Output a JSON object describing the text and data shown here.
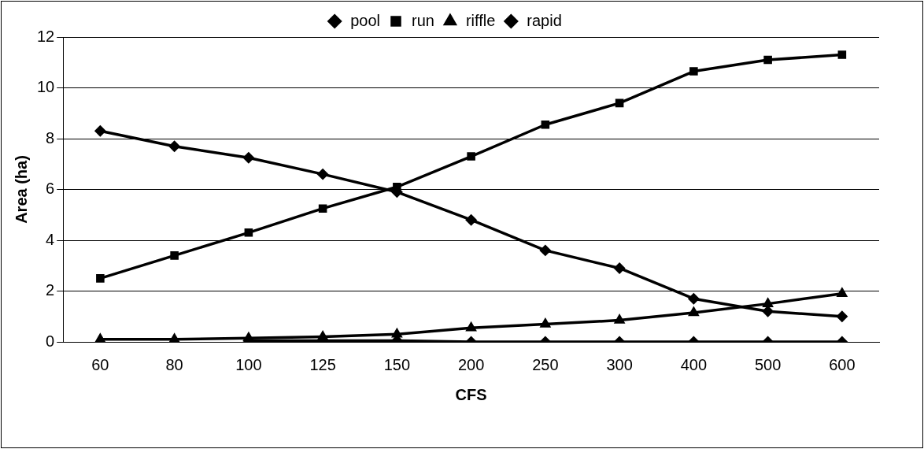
{
  "chart_data": {
    "type": "line",
    "xlabel": "CFS",
    "ylabel": "Area (ha)",
    "categories": [
      "60",
      "80",
      "100",
      "125",
      "150",
      "200",
      "250",
      "300",
      "400",
      "500",
      "600"
    ],
    "series": [
      {
        "name": "pool",
        "color": "#000000",
        "marker": "diamond",
        "values": [
          8.3,
          7.7,
          7.25,
          6.6,
          5.9,
          4.8,
          3.6,
          2.9,
          1.7,
          1.2,
          1.0
        ]
      },
      {
        "name": "run",
        "color": "#000000",
        "marker": "square",
        "values": [
          2.5,
          3.4,
          4.3,
          5.25,
          6.1,
          7.3,
          8.55,
          9.4,
          10.65,
          11.1,
          11.3
        ]
      },
      {
        "name": "riffle",
        "color": "#000000",
        "marker": "triangle",
        "values": [
          0.1,
          0.1,
          0.15,
          0.2,
          0.3,
          0.55,
          0.7,
          0.85,
          1.15,
          1.5,
          1.9
        ]
      },
      {
        "name": "rapid",
        "color": "#000000",
        "marker": "diamond",
        "values": [
          null,
          null,
          0.05,
          0.05,
          0.05,
          0,
          0,
          0,
          0,
          0,
          0
        ]
      }
    ],
    "ylim": [
      0,
      12
    ],
    "yticks": [
      0,
      2,
      4,
      6,
      8,
      10,
      12
    ],
    "grid": "y",
    "legend": "top",
    "line_style": "solid"
  }
}
